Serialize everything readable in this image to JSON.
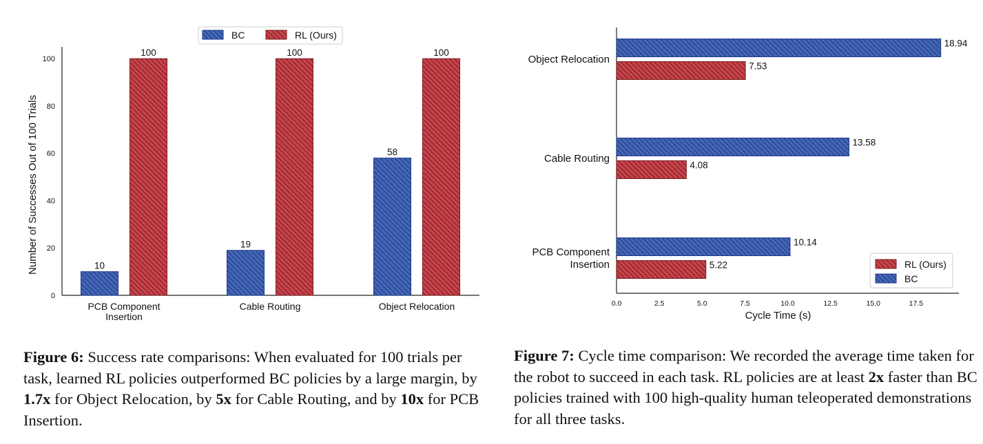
{
  "figures": [
    {
      "caption": {
        "label": "Figure 6:",
        "segments": [
          {
            "text": " Success rate comparisons: When evaluated for 100 trials per task, learned RL policies outperformed BC policies by a large margin, by ",
            "bold": false
          },
          {
            "text": "1.7x",
            "bold": true
          },
          {
            "text": " for Object Relocation, by ",
            "bold": false
          },
          {
            "text": "5x",
            "bold": true
          },
          {
            "text": " for Cable Routing, and by ",
            "bold": false
          },
          {
            "text": "10x",
            "bold": true
          },
          {
            "text": " for PCB Insertion.",
            "bold": false
          }
        ]
      }
    },
    {
      "caption": {
        "label": "Figure 7:",
        "segments": [
          {
            "text": " Cycle time comparison: We recorded the average time taken for the robot to succeed in each task. RL policies are at least ",
            "bold": false
          },
          {
            "text": "2x",
            "bold": true
          },
          {
            "text": " faster than BC policies trained with 100 high-quality human teleoperated demonstrations for all three tasks.",
            "bold": false
          }
        ]
      }
    }
  ],
  "colors": {
    "bc": "#4466b4",
    "bc_edge": "#1d3a8a",
    "rl": "#c8434a",
    "rl_edge": "#7a1c22",
    "axis": "#222222"
  },
  "chart_data": [
    {
      "type": "bar",
      "orientation": "vertical",
      "title": "",
      "xlabel": "",
      "ylabel": "Number of Successes Out of 100 Trials",
      "categories": [
        "PCB Component\nInsertion",
        "Cable Routing",
        "Object Relocation"
      ],
      "series": [
        {
          "name": "BC",
          "values": [
            10,
            19,
            58
          ],
          "color": "#4466b4",
          "hatch": "\\\\"
        },
        {
          "name": "RL (Ours)",
          "values": [
            100,
            100,
            100
          ],
          "color": "#c8434a",
          "hatch": "\\\\"
        }
      ],
      "data_labels": true,
      "ylim": [
        0,
        105
      ],
      "yticks": [
        0,
        20,
        40,
        60,
        80,
        100
      ],
      "grid": false,
      "legend": "top-center"
    },
    {
      "type": "bar",
      "orientation": "horizontal",
      "title": "",
      "xlabel": "Cycle Time (s)",
      "ylabel": "",
      "categories": [
        "PCB Component\nInsertion",
        "Cable Routing",
        "Object Relocation"
      ],
      "series": [
        {
          "name": "BC",
          "values": [
            10.14,
            13.58,
            18.94
          ],
          "color": "#4466b4",
          "hatch": "\\\\"
        },
        {
          "name": "RL (Ours)",
          "values": [
            5.22,
            4.08,
            7.53
          ],
          "color": "#c8434a",
          "hatch": "\\\\"
        }
      ],
      "legend_order": [
        "RL (Ours)",
        "BC"
      ],
      "data_labels": true,
      "xlim": [
        0,
        20
      ],
      "xticks": [
        0.0,
        2.5,
        5.0,
        7.5,
        10.0,
        12.5,
        15.0,
        17.5
      ],
      "xtick_labels": [
        "0.0",
        "2.5",
        "5.0",
        "7.5",
        "10.0",
        "12.5",
        "15.0",
        "17.5"
      ],
      "grid": false,
      "legend": "lower-right"
    }
  ]
}
